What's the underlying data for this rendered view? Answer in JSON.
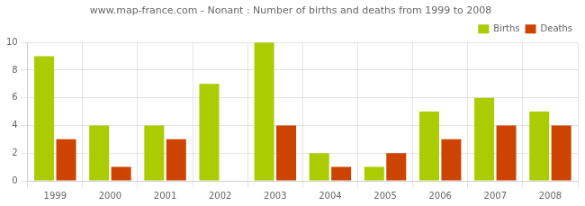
{
  "chart_data": {
    "type": "bar",
    "title": "www.map-france.com - Nonant : Number of births and deaths from 1999 to 2008",
    "categories": [
      "1999",
      "2000",
      "2001",
      "2002",
      "2003",
      "2004",
      "2005",
      "2006",
      "2007",
      "2008"
    ],
    "series": [
      {
        "name": "Births",
        "color": "#aacc00",
        "values": [
          9,
          4,
          4,
          7,
          10,
          2,
          1,
          5,
          6,
          5
        ]
      },
      {
        "name": "Deaths",
        "color": "#cc4400",
        "values": [
          3,
          1,
          3,
          0,
          4,
          1,
          2,
          3,
          4,
          4
        ]
      }
    ],
    "ylim": [
      0,
      10
    ],
    "yticks": [
      0,
      2,
      4,
      6,
      8,
      10
    ],
    "grid": true,
    "legend": "upper right"
  }
}
